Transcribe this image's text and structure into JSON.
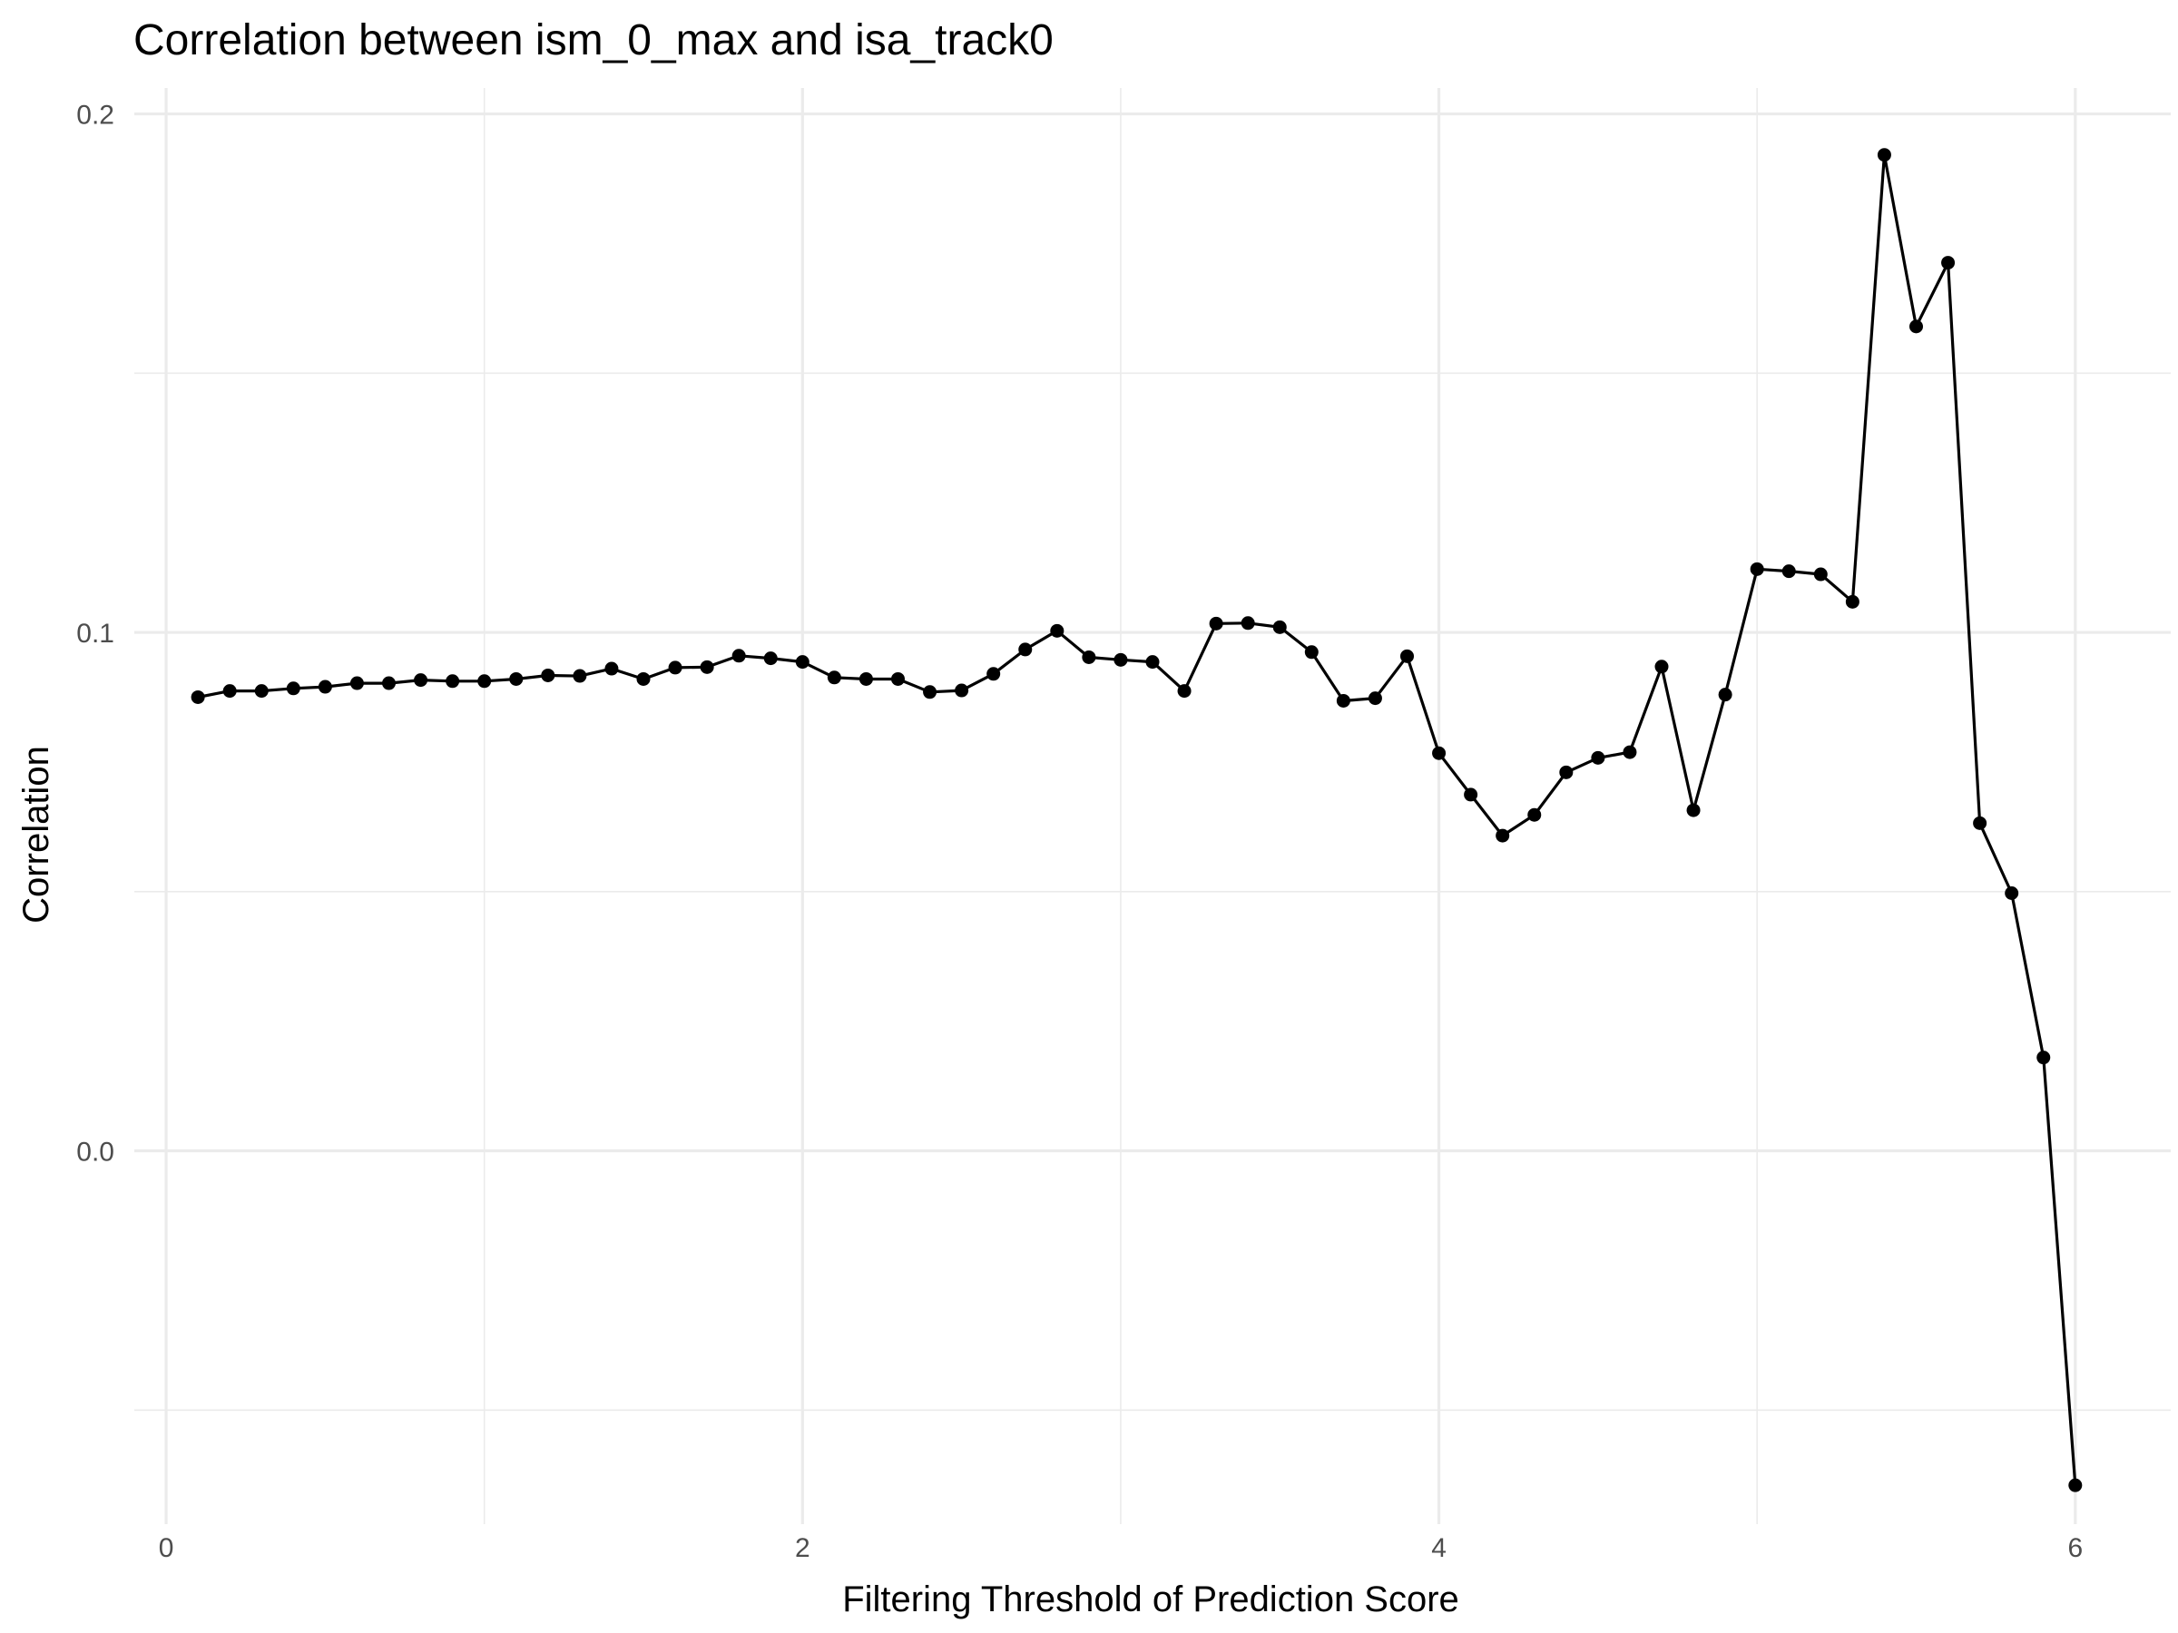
{
  "chart_data": {
    "type": "line",
    "title": "Correlation between ism_0_max and isa_track0",
    "xlabel": "Filtering Threshold of Prediction Score",
    "ylabel": "Correlation",
    "xlim": [
      -0.1,
      6.3
    ],
    "ylim": [
      -0.072,
      0.205
    ],
    "x_ticks": [
      0,
      2,
      4,
      6
    ],
    "x_tick_labels": [
      "0",
      "2",
      "4",
      "6"
    ],
    "y_ticks": [
      0.0,
      0.1,
      0.2
    ],
    "y_tick_labels": [
      "0.0",
      "0.1",
      "0.2"
    ],
    "x_minor_ticks": [
      1,
      3,
      5
    ],
    "y_minor_ticks": [
      -0.05,
      0.05,
      0.15
    ],
    "grid": true,
    "legend": "none",
    "series": [
      {
        "color": "#000000",
        "x": [
          0.1,
          0.2,
          0.3,
          0.4,
          0.5,
          0.6,
          0.7,
          0.8,
          0.9,
          1.0,
          1.1,
          1.2,
          1.3,
          1.4,
          1.5,
          1.6,
          1.7,
          1.8,
          1.9,
          2.0,
          2.1,
          2.2,
          2.3,
          2.4,
          2.5,
          2.6,
          2.7,
          2.8,
          2.9,
          3.0,
          3.1,
          3.2,
          3.3,
          3.4,
          3.5,
          3.6,
          3.7,
          3.8,
          3.9,
          4.0,
          4.1,
          4.2,
          4.3,
          4.4,
          4.5,
          4.6,
          4.7,
          4.8,
          4.9,
          5.0,
          5.1,
          5.2,
          5.3,
          5.4,
          5.5,
          5.6,
          5.7,
          5.8,
          5.9,
          6.0
        ],
        "y": [
          0.0875,
          0.0887,
          0.0887,
          0.0892,
          0.0895,
          0.0902,
          0.0902,
          0.0908,
          0.0906,
          0.0906,
          0.091,
          0.0917,
          0.0916,
          0.093,
          0.091,
          0.0932,
          0.0933,
          0.0955,
          0.095,
          0.0943,
          0.0913,
          0.091,
          0.091,
          0.0885,
          0.0888,
          0.092,
          0.0967,
          0.1003,
          0.0952,
          0.0947,
          0.0943,
          0.0887,
          0.1017,
          0.1018,
          0.101,
          0.0962,
          0.0868,
          0.0873,
          0.0954,
          0.0767,
          0.0687,
          0.0608,
          0.0648,
          0.073,
          0.0758,
          0.0769,
          0.0934,
          0.0657,
          0.088,
          0.1122,
          0.1118,
          0.1112,
          0.1059,
          0.1921,
          0.159,
          0.1713,
          0.0632,
          0.0497,
          0.018,
          -0.0645
        ]
      }
    ]
  }
}
